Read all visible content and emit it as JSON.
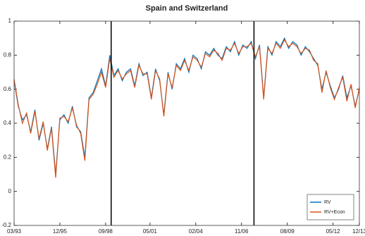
{
  "chart_data": {
    "type": "line",
    "title": "Spain and Switzerland",
    "x": [
      "1993-03",
      "1993-06",
      "1993-09",
      "1993-12",
      "1994-03",
      "1994-06",
      "1994-09",
      "1994-12",
      "1995-03",
      "1995-06",
      "1995-09",
      "1995-12",
      "1996-03",
      "1996-06",
      "1996-09",
      "1996-12",
      "1997-03",
      "1997-06",
      "1997-09",
      "1997-12",
      "1998-03",
      "1998-06",
      "1998-09",
      "1998-12",
      "1999-03",
      "1999-06",
      "1999-09",
      "1999-12",
      "2000-03",
      "2000-06",
      "2000-09",
      "2000-12",
      "2001-03",
      "2001-06",
      "2001-09",
      "2001-12",
      "2002-03",
      "2002-06",
      "2002-09",
      "2002-12",
      "2003-03",
      "2003-06",
      "2003-09",
      "2003-12",
      "2004-03",
      "2004-06",
      "2004-09",
      "2004-12",
      "2005-03",
      "2005-06",
      "2005-09",
      "2005-12",
      "2006-03",
      "2006-06",
      "2006-09",
      "2006-12",
      "2007-03",
      "2007-06",
      "2007-09",
      "2007-12",
      "2008-03",
      "2008-06",
      "2008-09",
      "2008-12",
      "2009-03",
      "2009-06",
      "2009-09",
      "2009-12",
      "2010-03",
      "2010-06",
      "2010-09",
      "2010-12",
      "2011-03",
      "2011-06",
      "2011-09",
      "2011-12",
      "2012-03",
      "2012-06",
      "2012-09",
      "2012-12",
      "2013-03",
      "2013-06",
      "2013-09",
      "2013-12"
    ],
    "series": [
      {
        "name": "RV",
        "color": "#0072bd",
        "values": [
          0.65,
          0.5,
          0.42,
          0.45,
          0.35,
          0.48,
          0.3,
          0.4,
          0.25,
          0.38,
          0.1,
          0.42,
          0.45,
          0.4,
          0.5,
          0.38,
          0.35,
          0.2,
          0.55,
          0.58,
          0.65,
          0.72,
          0.62,
          0.8,
          0.68,
          0.72,
          0.65,
          0.7,
          0.72,
          0.62,
          0.75,
          0.68,
          0.7,
          0.55,
          0.72,
          0.65,
          0.45,
          0.7,
          0.6,
          0.75,
          0.72,
          0.78,
          0.7,
          0.8,
          0.78,
          0.72,
          0.82,
          0.8,
          0.84,
          0.8,
          0.78,
          0.85,
          0.82,
          0.88,
          0.8,
          0.86,
          0.84,
          0.88,
          0.78,
          0.86,
          0.55,
          0.85,
          0.8,
          0.88,
          0.85,
          0.9,
          0.84,
          0.88,
          0.86,
          0.8,
          0.85,
          0.82,
          0.78,
          0.74,
          0.6,
          0.7,
          0.62,
          0.55,
          0.6,
          0.68,
          0.55,
          0.62,
          0.5,
          0.6
        ]
      },
      {
        "name": "RV+Econ",
        "color": "#d95319",
        "values": [
          0.66,
          0.51,
          0.4,
          0.46,
          0.34,
          0.47,
          0.31,
          0.41,
          0.24,
          0.37,
          0.08,
          0.43,
          0.44,
          0.41,
          0.49,
          0.39,
          0.34,
          0.18,
          0.54,
          0.57,
          0.63,
          0.7,
          0.61,
          0.78,
          0.67,
          0.71,
          0.66,
          0.69,
          0.71,
          0.61,
          0.74,
          0.69,
          0.69,
          0.54,
          0.71,
          0.66,
          0.44,
          0.69,
          0.61,
          0.74,
          0.71,
          0.77,
          0.71,
          0.79,
          0.77,
          0.73,
          0.81,
          0.79,
          0.83,
          0.81,
          0.77,
          0.84,
          0.83,
          0.87,
          0.81,
          0.85,
          0.85,
          0.87,
          0.79,
          0.85,
          0.54,
          0.84,
          0.81,
          0.87,
          0.84,
          0.89,
          0.85,
          0.87,
          0.85,
          0.81,
          0.84,
          0.83,
          0.77,
          0.75,
          0.58,
          0.71,
          0.61,
          0.54,
          0.61,
          0.67,
          0.53,
          0.63,
          0.49,
          0.61
        ]
      }
    ],
    "ylim": [
      -0.2,
      1
    ],
    "yticks": [
      -0.2,
      0,
      0.2,
      0.4,
      0.6,
      0.8,
      1
    ],
    "xlim": [
      "1993-03",
      "2013-12"
    ],
    "xticks": [
      {
        "value": "1993-03",
        "label": "03/93"
      },
      {
        "value": "1995-12",
        "label": "12/95"
      },
      {
        "value": "1998-09",
        "label": "09/98"
      },
      {
        "value": "2001-05",
        "label": "05/01"
      },
      {
        "value": "2004-02",
        "label": "02/04"
      },
      {
        "value": "2006-11",
        "label": "11/06"
      },
      {
        "value": "2009-08",
        "label": "08/09"
      },
      {
        "value": "2012-05",
        "label": "05/12"
      },
      {
        "value": "2013-12",
        "label": "12/13"
      }
    ],
    "vlines": [
      "1999-01",
      "2007-08"
    ],
    "legend": "lower right"
  }
}
